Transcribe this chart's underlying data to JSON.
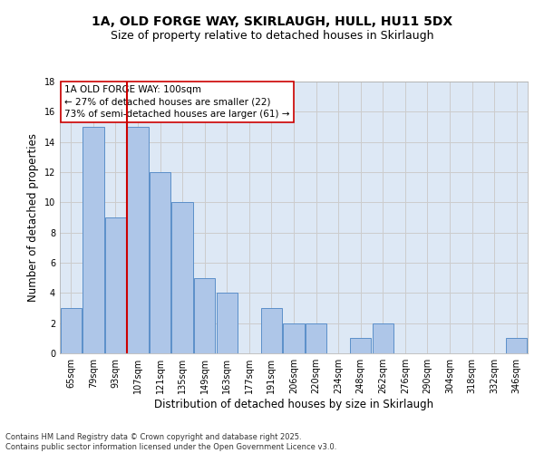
{
  "title1": "1A, OLD FORGE WAY, SKIRLAUGH, HULL, HU11 5DX",
  "title2": "Size of property relative to detached houses in Skirlaugh",
  "xlabel": "Distribution of detached houses by size in Skirlaugh",
  "ylabel": "Number of detached properties",
  "categories": [
    "65sqm",
    "79sqm",
    "93sqm",
    "107sqm",
    "121sqm",
    "135sqm",
    "149sqm",
    "163sqm",
    "177sqm",
    "191sqm",
    "206sqm",
    "220sqm",
    "234sqm",
    "248sqm",
    "262sqm",
    "276sqm",
    "290sqm",
    "304sqm",
    "318sqm",
    "332sqm",
    "346sqm"
  ],
  "values": [
    3,
    15,
    9,
    15,
    12,
    10,
    5,
    4,
    0,
    3,
    2,
    2,
    0,
    1,
    2,
    0,
    0,
    0,
    0,
    0,
    1
  ],
  "bar_color": "#aec6e8",
  "bar_edge_color": "#5b8fc9",
  "vline_color": "#cc0000",
  "vline_pos": 2.525,
  "annotation_box_text": "1A OLD FORGE WAY: 100sqm\n← 27% of detached houses are smaller (22)\n73% of semi-detached houses are larger (61) →",
  "annotation_box_color": "#cc0000",
  "annotation_bg": "#ffffff",
  "ylim": [
    0,
    18
  ],
  "yticks": [
    0,
    2,
    4,
    6,
    8,
    10,
    12,
    14,
    16,
    18
  ],
  "grid_color": "#cccccc",
  "bg_color": "#dde8f5",
  "footer1": "Contains HM Land Registry data © Crown copyright and database right 2025.",
  "footer2": "Contains public sector information licensed under the Open Government Licence v3.0.",
  "title_fontsize": 10,
  "subtitle_fontsize": 9,
  "xlabel_fontsize": 8.5,
  "ylabel_fontsize": 8.5,
  "tick_fontsize": 7,
  "annot_fontsize": 7.5
}
